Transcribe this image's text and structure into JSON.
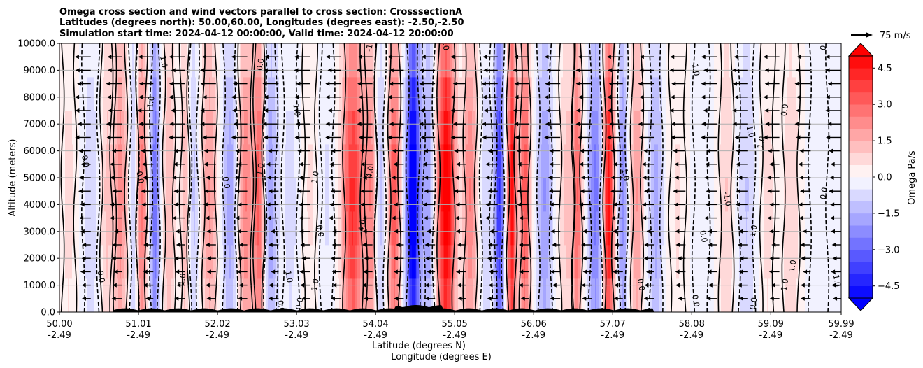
{
  "chart_data": {
    "type": "heatmap",
    "title_lines": [
      "Omega cross section and wind vectors parallel to cross section: CrosssectionA",
      "Latitudes (degrees north): 50.00,60.00, Longitudes (degrees east): -2.50,-2.50",
      "Simulation start time: 2024-04-12 00:00:00, Valid time: 2024-04-12 20:00:00"
    ],
    "xlabel": "Latitude (degrees N)",
    "xlabel2": "Longitude (degrees E)",
    "ylabel": "Altitude (meters)",
    "x_ticks": [
      {
        "lat": "50.00",
        "lon": "-2.49",
        "v": 50.0
      },
      {
        "lat": "51.01",
        "lon": "-2.49",
        "v": 51.01
      },
      {
        "lat": "52.02",
        "lon": "-2.49",
        "v": 52.02
      },
      {
        "lat": "53.03",
        "lon": "-2.49",
        "v": 53.03
      },
      {
        "lat": "54.04",
        "lon": "-2.49",
        "v": 54.04
      },
      {
        "lat": "55.05",
        "lon": "-2.49",
        "v": 55.05
      },
      {
        "lat": "56.06",
        "lon": "-2.49",
        "v": 56.06
      },
      {
        "lat": "57.07",
        "lon": "-2.49",
        "v": 57.07
      },
      {
        "lat": "58.08",
        "lon": "-2.49",
        "v": 58.08
      },
      {
        "lat": "59.09",
        "lon": "-2.49",
        "v": 59.09
      },
      {
        "lat": "59.99",
        "lon": "-2.49",
        "v": 59.99
      }
    ],
    "xlim": [
      50.0,
      59.99
    ],
    "y_ticks": [
      "0.0",
      "1000.0",
      "2000.0",
      "3000.0",
      "4000.0",
      "5000.0",
      "6000.0",
      "7000.0",
      "8000.0",
      "9000.0",
      "10000.0"
    ],
    "y_tick_values": [
      0,
      1000,
      2000,
      3000,
      4000,
      5000,
      6000,
      7000,
      8000,
      9000,
      10000
    ],
    "ylim": [
      0,
      10000
    ],
    "grid": "horizontal",
    "colorbar": {
      "label": "Omega Pa/s",
      "range": [
        -5.0,
        5.0
      ],
      "levels": 20,
      "extend": "both",
      "tick_labels": [
        "4.5",
        "3.0",
        "1.5",
        "0.0",
        "−1.5",
        "−3.0",
        "−4.5"
      ],
      "tick_values": [
        4.5,
        3.0,
        1.5,
        0.0,
        -1.5,
        -3.0,
        -4.5
      ],
      "min_color": "#0000ff",
      "max_color": "#ff0000",
      "mid_color": "#ffffff"
    },
    "quiver_key": {
      "label": "75 m/s"
    },
    "omega_bands": [
      {
        "center": 50.12,
        "width": 0.1,
        "value": 0.6
      },
      {
        "center": 50.4,
        "width": 0.12,
        "value": -0.7
      },
      {
        "center": 50.6,
        "width": 0.08,
        "value": 1.0
      },
      {
        "center": 50.78,
        "width": 0.09,
        "value": 2.0
      },
      {
        "center": 50.95,
        "width": 0.06,
        "value": -1.2
      },
      {
        "center": 51.05,
        "width": 0.07,
        "value": 2.5
      },
      {
        "center": 51.22,
        "width": 0.06,
        "value": -2.6
      },
      {
        "center": 51.4,
        "width": 0.08,
        "value": 1.3
      },
      {
        "center": 51.6,
        "width": 0.06,
        "value": 1.2
      },
      {
        "center": 51.72,
        "width": 0.06,
        "value": -1.0
      },
      {
        "center": 51.92,
        "width": 0.1,
        "value": 1.8
      },
      {
        "center": 52.18,
        "width": 0.1,
        "value": -1.6
      },
      {
        "center": 52.38,
        "width": 0.1,
        "value": 2.2
      },
      {
        "center": 52.55,
        "width": 0.07,
        "value": 2.8
      },
      {
        "center": 52.7,
        "width": 0.09,
        "value": -1.6
      },
      {
        "center": 52.95,
        "width": 0.12,
        "value": -0.6
      },
      {
        "center": 53.2,
        "width": 0.1,
        "value": 0.5
      },
      {
        "center": 53.42,
        "width": 0.1,
        "value": -0.5
      },
      {
        "center": 53.75,
        "width": 0.14,
        "value": 3.6
      },
      {
        "center": 53.98,
        "width": 0.08,
        "value": 2.0
      },
      {
        "center": 54.1,
        "width": 0.07,
        "value": -1.2
      },
      {
        "center": 54.28,
        "width": 0.08,
        "value": 3.0
      },
      {
        "center": 54.52,
        "width": 0.09,
        "value": -5.0
      },
      {
        "center": 54.72,
        "width": 0.08,
        "value": -1.8
      },
      {
        "center": 54.94,
        "width": 0.12,
        "value": 4.8
      },
      {
        "center": 55.25,
        "width": 0.09,
        "value": 2.2
      },
      {
        "center": 55.45,
        "width": 0.08,
        "value": -0.8
      },
      {
        "center": 55.62,
        "width": 0.06,
        "value": -3.5
      },
      {
        "center": 55.78,
        "width": 0.06,
        "value": 4.2
      },
      {
        "center": 55.95,
        "width": 0.07,
        "value": 3.0
      },
      {
        "center": 56.2,
        "width": 0.1,
        "value": -1.8
      },
      {
        "center": 56.48,
        "width": 0.1,
        "value": 1.0
      },
      {
        "center": 56.62,
        "width": 0.06,
        "value": 2.5
      },
      {
        "center": 56.85,
        "width": 0.09,
        "value": -2.4
      },
      {
        "center": 57.02,
        "width": 0.07,
        "value": 4.2
      },
      {
        "center": 57.2,
        "width": 0.06,
        "value": -2.0
      },
      {
        "center": 57.38,
        "width": 0.08,
        "value": 1.8
      },
      {
        "center": 57.62,
        "width": 0.09,
        "value": -1.5
      },
      {
        "center": 57.9,
        "width": 0.12,
        "value": 0.5
      },
      {
        "center": 58.2,
        "width": 0.12,
        "value": -0.4
      },
      {
        "center": 58.52,
        "width": 0.1,
        "value": 0.9
      },
      {
        "center": 58.78,
        "width": 0.12,
        "value": -0.9
      },
      {
        "center": 59.05,
        "width": 0.1,
        "value": 0.6
      },
      {
        "center": 59.35,
        "width": 0.12,
        "value": 0.8
      },
      {
        "center": 59.7,
        "width": 0.14,
        "value": -0.4
      }
    ],
    "wind_vectors": {
      "direction": "toward decreasing latitude",
      "row_altitudes": [
        9500,
        9000,
        8500,
        8000,
        7500,
        7000,
        6500,
        6000,
        5500,
        5000,
        4500,
        4000,
        3500,
        3000,
        2500,
        2000,
        1500,
        1000,
        500
      ],
      "column_latitudes": [
        50.0,
        50.4,
        50.8,
        51.2,
        51.6,
        52.0,
        52.4,
        52.8,
        53.2,
        53.6,
        54.0,
        54.4,
        54.8,
        55.2,
        55.6,
        56.0,
        56.4,
        56.8,
        57.2,
        57.6,
        58.0,
        58.4,
        58.8,
        59.2,
        59.6,
        59.99
      ]
    },
    "contour_labels": [
      {
        "text": "-1.0",
        "lat": 54.0,
        "alt": 9950
      },
      {
        "text": "1.0",
        "lat": 54.9,
        "alt": 9950
      },
      {
        "text": "0.0",
        "lat": 59.8,
        "alt": 9950
      },
      {
        "text": "1.0",
        "lat": 51.3,
        "alt": 9300
      },
      {
        "text": "0.0",
        "lat": 52.6,
        "alt": 9200
      },
      {
        "text": "1.0",
        "lat": 58.1,
        "alt": 9000
      },
      {
        "text": "1.0",
        "lat": 51.2,
        "alt": 7800
      },
      {
        "text": "1.0",
        "lat": 53.0,
        "alt": 7500
      },
      {
        "text": "0.0",
        "lat": 59.3,
        "alt": 7500
      },
      {
        "text": "1.0",
        "lat": 58.8,
        "alt": 6700
      },
      {
        "text": "1.0",
        "lat": 59.0,
        "alt": 6300
      },
      {
        "text": "0.0",
        "lat": 50.3,
        "alt": 5600
      },
      {
        "text": "1.0",
        "lat": 52.6,
        "alt": 5300
      },
      {
        "text": "0.0",
        "lat": 51.0,
        "alt": 5000
      },
      {
        "text": "4.0",
        "lat": 54.0,
        "alt": 5200
      },
      {
        "text": "1.0",
        "lat": 57.2,
        "alt": 5100
      },
      {
        "text": "1.0",
        "lat": 53.3,
        "alt": 5000
      },
      {
        "text": "0.0",
        "lat": 52.1,
        "alt": 4800
      },
      {
        "text": "0.0",
        "lat": 59.8,
        "alt": 4400
      },
      {
        "text": "-1.0",
        "lat": 58.5,
        "alt": 4200
      },
      {
        "text": "4.0",
        "lat": 53.9,
        "alt": 3200
      },
      {
        "text": "0.0",
        "lat": 53.3,
        "alt": 3000
      },
      {
        "text": "1.0",
        "lat": 58.9,
        "alt": 3000
      },
      {
        "text": "0.0",
        "lat": 58.2,
        "alt": 2800
      },
      {
        "text": "1.0",
        "lat": 59.4,
        "alt": 1700
      },
      {
        "text": "0.0",
        "lat": 50.5,
        "alt": 1300
      },
      {
        "text": "1.0",
        "lat": 51.6,
        "alt": 1200
      },
      {
        "text": "1.0",
        "lat": 52.9,
        "alt": 1300
      },
      {
        "text": "1.0",
        "lat": 53.3,
        "alt": 1000
      },
      {
        "text": "0.0",
        "lat": 57.4,
        "alt": 1000
      },
      {
        "text": "1.0",
        "lat": 59.3,
        "alt": 1000
      },
      {
        "text": "-1.0",
        "lat": 59.9,
        "alt": 1200
      },
      {
        "text": "0.0",
        "lat": 53.1,
        "alt": 300
      },
      {
        "text": "0.0",
        "lat": 58.1,
        "alt": 400
      },
      {
        "text": "0.0",
        "lat": 58.9,
        "alt": 300
      },
      {
        "text": "0.0",
        "lat": 52.8,
        "alt": 200
      }
    ]
  }
}
